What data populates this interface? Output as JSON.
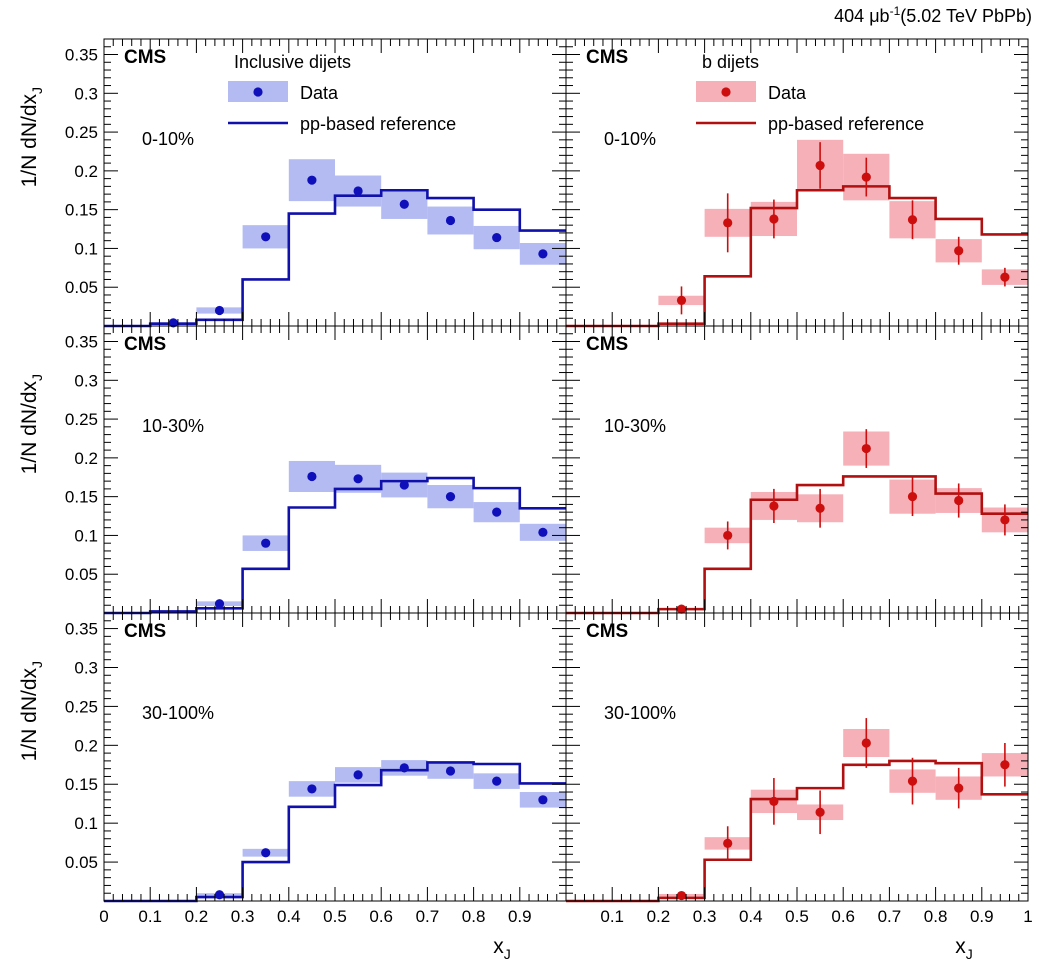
{
  "figure": {
    "luminosity": "404 μb",
    "luminosity_sup": "-1",
    "energy": "(5.02 TeV PbPb)"
  },
  "colors": {
    "inclusive_line": "#1010aa",
    "inclusive_marker": "#1010bb",
    "inclusive_band": "#b3bbf2",
    "b_line": "#b01010",
    "b_marker": "#cc0e0e",
    "b_band": "#f5b0b8"
  },
  "chart_data": [
    {
      "type": "line",
      "column": "Inclusive dijets",
      "centrality": "0-10%",
      "experiment": "CMS",
      "legend_title": "Inclusive dijets",
      "legend_data": "Data",
      "legend_ref": "pp-based reference",
      "xlabel": "x_J",
      "ylabel": "1/N dN/dx_J",
      "xlim": [
        0,
        1
      ],
      "ylim": [
        0,
        0.37
      ],
      "bin_edges": [
        0,
        0.1,
        0.2,
        0.3,
        0.4,
        0.5,
        0.6,
        0.7,
        0.8,
        0.9,
        1.0
      ],
      "reference": [
        0.0,
        0.003,
        0.008,
        0.06,
        0.145,
        0.168,
        0.175,
        0.165,
        0.15,
        0.123
      ],
      "data_x": [
        0.15,
        0.25,
        0.35,
        0.45,
        0.55,
        0.65,
        0.75,
        0.85,
        0.95
      ],
      "data_y": [
        0.004,
        0.02,
        0.115,
        0.188,
        0.174,
        0.157,
        0.136,
        0.114,
        0.093
      ],
      "syst": [
        0.001,
        0.004,
        0.015,
        0.027,
        0.02,
        0.019,
        0.018,
        0.015,
        0.014
      ],
      "stat": [
        0,
        0,
        0,
        0,
        0,
        0,
        0,
        0,
        0
      ]
    },
    {
      "type": "line",
      "column": "b dijets",
      "centrality": "0-10%",
      "experiment": "CMS",
      "legend_title": "b dijets",
      "legend_data": "Data",
      "legend_ref": "pp-based reference",
      "xlabel": "x_J",
      "ylabel": "",
      "xlim": [
        0,
        1
      ],
      "ylim": [
        0,
        0.37
      ],
      "bin_edges": [
        0,
        0.1,
        0.2,
        0.3,
        0.4,
        0.5,
        0.6,
        0.7,
        0.8,
        0.9,
        1.0
      ],
      "reference": [
        0.0,
        0.0,
        0.003,
        0.064,
        0.152,
        0.175,
        0.18,
        0.165,
        0.138,
        0.118
      ],
      "data_x": [
        0.25,
        0.35,
        0.45,
        0.55,
        0.65,
        0.75,
        0.85,
        0.95
      ],
      "data_y": [
        0.033,
        0.133,
        0.138,
        0.207,
        0.192,
        0.137,
        0.097,
        0.063
      ],
      "syst": [
        0.006,
        0.018,
        0.022,
        0.033,
        0.03,
        0.024,
        0.015,
        0.01
      ],
      "stat": [
        0.018,
        0.038,
        0.025,
        0.03,
        0.025,
        0.025,
        0.018,
        0.012
      ]
    },
    {
      "type": "line",
      "column": "Inclusive dijets",
      "centrality": "10-30%",
      "experiment": "CMS",
      "xlabel": "x_J",
      "ylabel": "1/N dN/dx_J",
      "xlim": [
        0,
        1
      ],
      "ylim": [
        0,
        0.37
      ],
      "bin_edges": [
        0,
        0.1,
        0.2,
        0.3,
        0.4,
        0.5,
        0.6,
        0.7,
        0.8,
        0.9,
        1.0
      ],
      "reference": [
        0.0,
        0.002,
        0.006,
        0.057,
        0.136,
        0.16,
        0.17,
        0.174,
        0.161,
        0.135
      ],
      "data_x": [
        0.25,
        0.35,
        0.45,
        0.55,
        0.65,
        0.75,
        0.85,
        0.95
      ],
      "data_y": [
        0.012,
        0.09,
        0.176,
        0.173,
        0.165,
        0.15,
        0.13,
        0.104
      ],
      "syst": [
        0.003,
        0.01,
        0.02,
        0.018,
        0.016,
        0.015,
        0.013,
        0.011
      ],
      "stat": [
        0,
        0,
        0,
        0,
        0,
        0,
        0,
        0
      ]
    },
    {
      "type": "line",
      "column": "b dijets",
      "centrality": "10-30%",
      "experiment": "CMS",
      "xlabel": "x_J",
      "ylabel": "",
      "xlim": [
        0,
        1
      ],
      "ylim": [
        0,
        0.37
      ],
      "bin_edges": [
        0,
        0.1,
        0.2,
        0.3,
        0.4,
        0.5,
        0.6,
        0.7,
        0.8,
        0.9,
        1.0
      ],
      "reference": [
        0.0,
        0.0,
        0.005,
        0.057,
        0.146,
        0.165,
        0.176,
        0.176,
        0.154,
        0.128
      ],
      "data_x": [
        0.25,
        0.35,
        0.45,
        0.55,
        0.65,
        0.75,
        0.85,
        0.95
      ],
      "data_y": [
        0.005,
        0.1,
        0.138,
        0.135,
        0.212,
        0.15,
        0.145,
        0.12
      ],
      "syst": [
        0.001,
        0.01,
        0.018,
        0.018,
        0.022,
        0.022,
        0.016,
        0.016
      ],
      "stat": [
        0.004,
        0.018,
        0.022,
        0.025,
        0.025,
        0.025,
        0.022,
        0.02
      ]
    },
    {
      "type": "line",
      "column": "Inclusive dijets",
      "centrality": "30-100%",
      "experiment": "CMS",
      "xlabel": "x_J",
      "ylabel": "1/N dN/dx_J",
      "xlim": [
        0,
        1
      ],
      "ylim": [
        0,
        0.37
      ],
      "bin_edges": [
        0,
        0.1,
        0.2,
        0.3,
        0.4,
        0.5,
        0.6,
        0.7,
        0.8,
        0.9,
        1.0
      ],
      "reference": [
        0.0,
        0.0,
        0.005,
        0.05,
        0.121,
        0.149,
        0.168,
        0.178,
        0.176,
        0.151
      ],
      "data_x": [
        0.25,
        0.35,
        0.45,
        0.55,
        0.65,
        0.75,
        0.85,
        0.95
      ],
      "data_y": [
        0.008,
        0.062,
        0.144,
        0.162,
        0.171,
        0.167,
        0.154,
        0.13
      ],
      "syst": [
        0.002,
        0.005,
        0.01,
        0.01,
        0.01,
        0.01,
        0.01,
        0.01
      ],
      "stat": [
        0,
        0,
        0,
        0,
        0,
        0,
        0,
        0
      ]
    },
    {
      "type": "line",
      "column": "b dijets",
      "centrality": "30-100%",
      "experiment": "CMS",
      "xlabel": "x_J",
      "ylabel": "",
      "xlim": [
        0,
        1
      ],
      "ylim": [
        0,
        0.37
      ],
      "bin_edges": [
        0,
        0.1,
        0.2,
        0.3,
        0.4,
        0.5,
        0.6,
        0.7,
        0.8,
        0.9,
        1.0
      ],
      "reference": [
        0.0,
        0.0,
        0.004,
        0.053,
        0.131,
        0.145,
        0.175,
        0.18,
        0.177,
        0.137
      ],
      "data_x": [
        0.25,
        0.35,
        0.45,
        0.55,
        0.65,
        0.75,
        0.85,
        0.95
      ],
      "data_y": [
        0.007,
        0.074,
        0.128,
        0.114,
        0.203,
        0.154,
        0.145,
        0.175
      ],
      "syst": [
        0.002,
        0.008,
        0.015,
        0.01,
        0.018,
        0.015,
        0.015,
        0.015
      ],
      "stat": [
        0.004,
        0.022,
        0.03,
        0.028,
        0.032,
        0.03,
        0.026,
        0.028
      ]
    }
  ]
}
